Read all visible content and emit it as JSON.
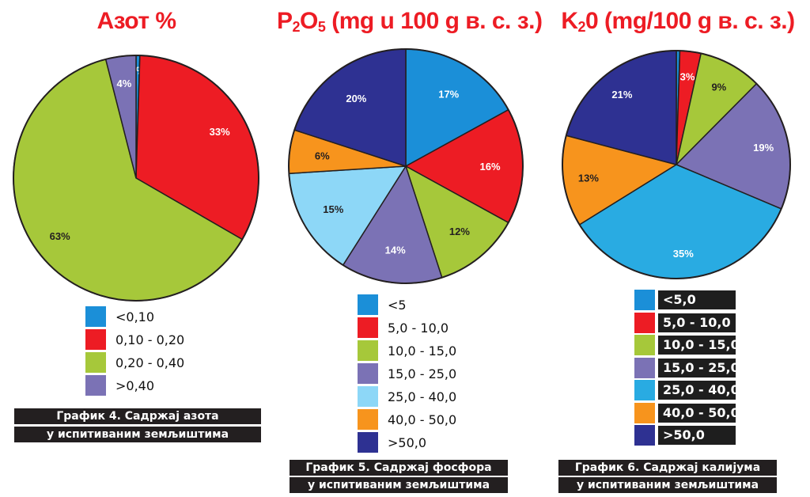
{
  "chart_data": [
    {
      "type": "pie",
      "title": "Азот %",
      "series": [
        {
          "values": [
            0.5,
            33,
            63,
            4
          ]
        }
      ],
      "slice_labels": [
        "0%",
        "33%",
        "63%",
        "4%"
      ],
      "categories": [
        "<0,10",
        "0,10 - 0,20",
        "0,20 - 0,40",
        ">0,40"
      ],
      "colors": [
        "#1b8fd8",
        "#ed1c24",
        "#a6c83a",
        "#7b72b5"
      ],
      "caption": [
        "График 4. Садржај азота",
        "у испитиваним земљиштима"
      ]
    },
    {
      "type": "pie",
      "title_main": "P",
      "title_sub1": "2",
      "title_mid": "O",
      "title_sub2": "5",
      "title_rest": " (mg u 100 g в. с. з.)",
      "series": [
        {
          "values": [
            17,
            16,
            12,
            14,
            15,
            6,
            20
          ]
        }
      ],
      "slice_labels": [
        "17%",
        "16%",
        "12%",
        "14%",
        "15%",
        "6%",
        "20%"
      ],
      "categories": [
        "<5",
        "5,0 - 10,0",
        "10,0 - 15,0",
        "15,0 - 25,0",
        "25,0 - 40,0",
        "40,0 - 50,0",
        ">50,0"
      ],
      "colors": [
        "#1b8fd8",
        "#ed1c24",
        "#a6c83a",
        "#7b72b5",
        "#8dd7f7",
        "#f7941d",
        "#2e3192"
      ],
      "caption": [
        "График 5. Садржај фосфора",
        "у испитиваним земљиштима"
      ]
    },
    {
      "type": "pie",
      "title_main": "K",
      "title_sub1": "2",
      "title_rest": "0 (mg/100 g в. с. з.)",
      "series": [
        {
          "values": [
            0.5,
            3,
            9,
            19,
            35,
            13,
            21
          ]
        }
      ],
      "slice_labels": [
        "",
        "3%",
        "9%",
        "19%",
        "35%",
        "13%",
        "21%"
      ],
      "categories": [
        "<5,0",
        "5,0 - 10,0",
        "10,0 - 15,0",
        "15,0 - 25,0",
        "25,0 - 40,0",
        "40,0 - 50,0",
        ">50,0"
      ],
      "colors": [
        "#1b8fd8",
        "#ed1c24",
        "#a6c83a",
        "#7b72b5",
        "#29abe2",
        "#f7941d",
        "#2e3192"
      ],
      "caption": [
        "График 6. Садржај калијума",
        "у испитиваним земљиштима"
      ]
    }
  ]
}
